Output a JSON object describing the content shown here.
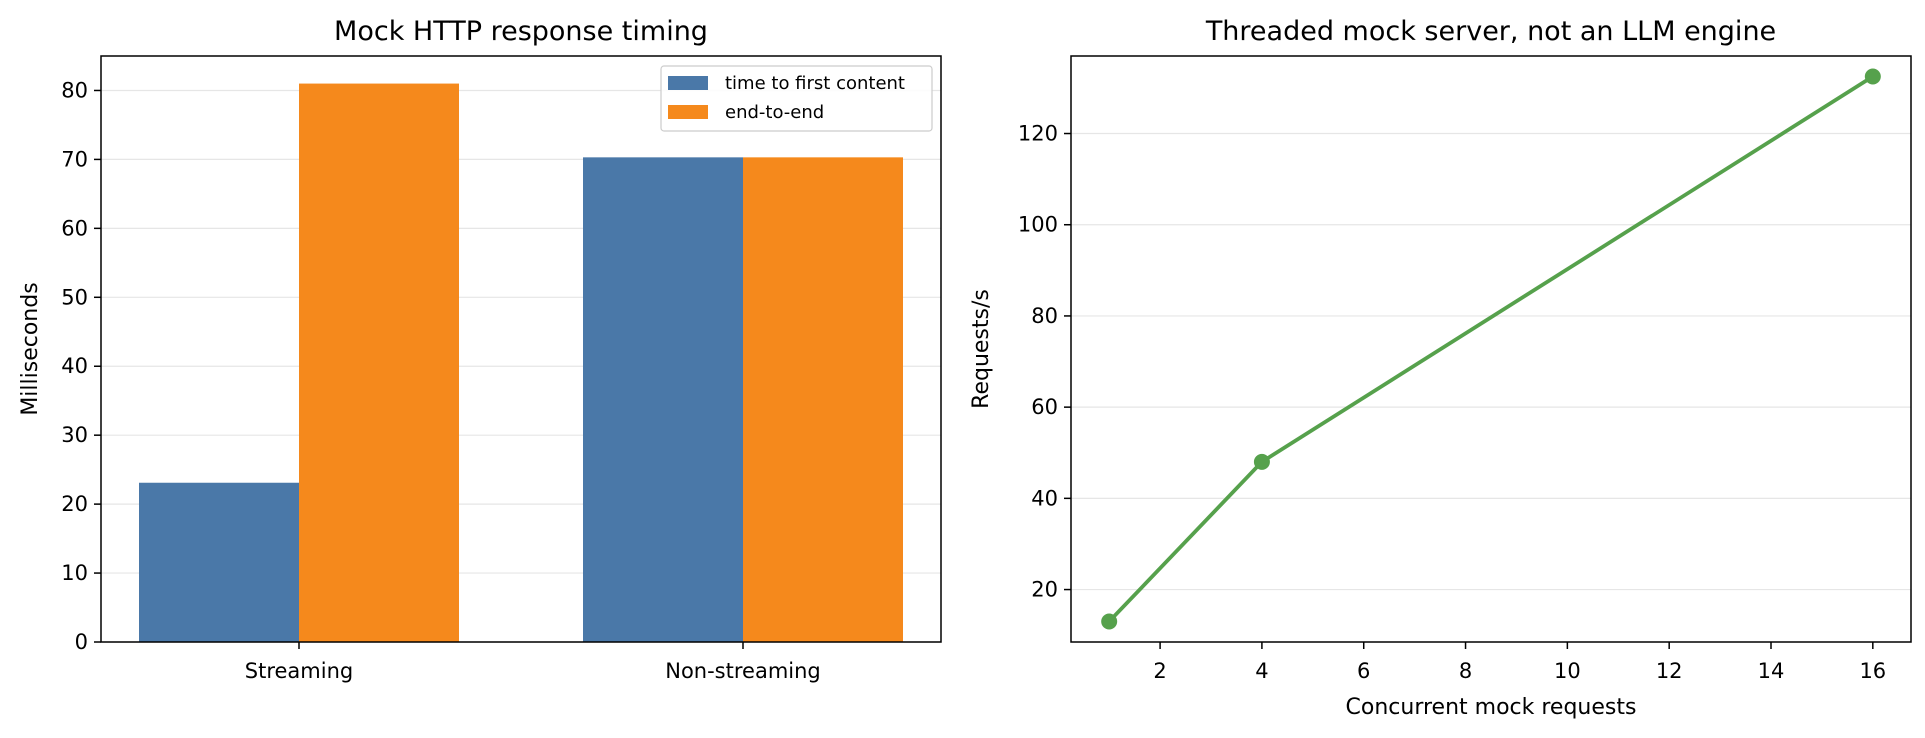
{
  "chart_data": [
    {
      "type": "bar",
      "title": "Mock HTTP response timing",
      "xlabel": "",
      "ylabel": "Milliseconds",
      "categories": [
        "Streaming",
        "Non-streaming"
      ],
      "series": [
        {
          "name": "time to first content",
          "color": "#4a78a8",
          "values": [
            23.1,
            70.3
          ]
        },
        {
          "name": "end-to-end",
          "color": "#f5891c",
          "values": [
            81.0,
            70.3
          ]
        }
      ],
      "ylim": [
        0,
        85
      ],
      "yticks": [
        0,
        10,
        20,
        30,
        40,
        50,
        60,
        70,
        80
      ],
      "grid": "y",
      "legend_position": "top-right"
    },
    {
      "type": "line",
      "title": "Threaded mock server, not an LLM engine",
      "xlabel": "Concurrent mock requests",
      "ylabel": "Requests/s",
      "color": "#56a14c",
      "x": [
        1,
        4,
        16
      ],
      "y": [
        13,
        48,
        132.5
      ],
      "xlim": [
        0.25,
        16.75
      ],
      "ylim": [
        8.5,
        137
      ],
      "xticks": [
        2,
        4,
        6,
        8,
        10,
        12,
        14,
        16
      ],
      "yticks": [
        20,
        40,
        60,
        80,
        100,
        120
      ],
      "grid": "y"
    }
  ]
}
